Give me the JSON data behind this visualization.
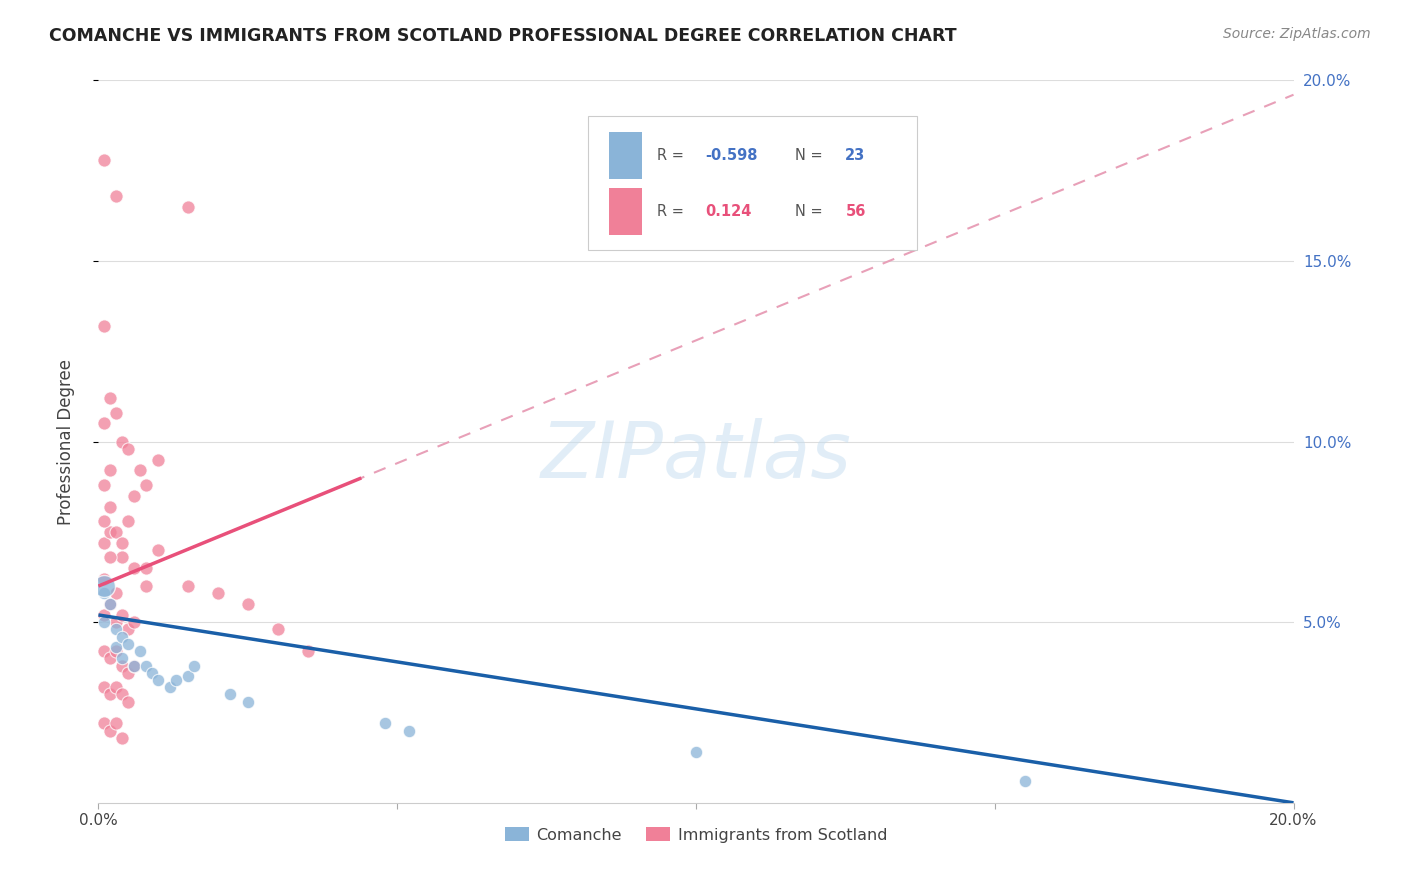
{
  "title": "COMANCHE VS IMMIGRANTS FROM SCOTLAND PROFESSIONAL DEGREE CORRELATION CHART",
  "source": "Source: ZipAtlas.com",
  "ylabel": "Professional Degree",
  "xlim": [
    0.0,
    0.2
  ],
  "ylim": [
    0.0,
    0.2
  ],
  "comanche_color": "#8ab4d8",
  "scotland_color": "#f08098",
  "trendline_comanche_color": "#1a5fa8",
  "trendline_scotland_solid_color": "#e8507a",
  "trendline_scotland_dashed_color": "#e8a0b8",
  "right_axis_color": "#4472c4",
  "watermark": "ZIPatlas",
  "background_color": "#ffffff",
  "grid_color": "#dddddd",
  "comanche_R": "-0.598",
  "comanche_N": "23",
  "scotland_R": "0.124",
  "scotland_N": "56",
  "comanche_points": [
    [
      0.001,
      0.058
    ],
    [
      0.001,
      0.05
    ],
    [
      0.002,
      0.055
    ],
    [
      0.003,
      0.048
    ],
    [
      0.003,
      0.043
    ],
    [
      0.004,
      0.046
    ],
    [
      0.004,
      0.04
    ],
    [
      0.005,
      0.044
    ],
    [
      0.006,
      0.038
    ],
    [
      0.007,
      0.042
    ],
    [
      0.008,
      0.038
    ],
    [
      0.009,
      0.036
    ],
    [
      0.01,
      0.034
    ],
    [
      0.012,
      0.032
    ],
    [
      0.013,
      0.034
    ],
    [
      0.015,
      0.035
    ],
    [
      0.016,
      0.038
    ],
    [
      0.022,
      0.03
    ],
    [
      0.025,
      0.028
    ],
    [
      0.048,
      0.022
    ],
    [
      0.052,
      0.02
    ],
    [
      0.1,
      0.014
    ],
    [
      0.155,
      0.006
    ]
  ],
  "scotland_points": [
    [
      0.001,
      0.178
    ],
    [
      0.003,
      0.168
    ],
    [
      0.015,
      0.165
    ],
    [
      0.001,
      0.132
    ],
    [
      0.001,
      0.105
    ],
    [
      0.002,
      0.112
    ],
    [
      0.003,
      0.108
    ],
    [
      0.004,
      0.1
    ],
    [
      0.005,
      0.098
    ],
    [
      0.007,
      0.092
    ],
    [
      0.008,
      0.088
    ],
    [
      0.01,
      0.095
    ],
    [
      0.001,
      0.072
    ],
    [
      0.002,
      0.075
    ],
    [
      0.004,
      0.068
    ],
    [
      0.006,
      0.065
    ],
    [
      0.008,
      0.06
    ],
    [
      0.001,
      0.052
    ],
    [
      0.002,
      0.055
    ],
    [
      0.003,
      0.05
    ],
    [
      0.004,
      0.052
    ],
    [
      0.005,
      0.048
    ],
    [
      0.006,
      0.05
    ],
    [
      0.001,
      0.042
    ],
    [
      0.002,
      0.04
    ],
    [
      0.003,
      0.042
    ],
    [
      0.004,
      0.038
    ],
    [
      0.005,
      0.036
    ],
    [
      0.006,
      0.038
    ],
    [
      0.001,
      0.032
    ],
    [
      0.002,
      0.03
    ],
    [
      0.003,
      0.032
    ],
    [
      0.004,
      0.03
    ],
    [
      0.005,
      0.028
    ],
    [
      0.001,
      0.022
    ],
    [
      0.002,
      0.02
    ],
    [
      0.003,
      0.022
    ],
    [
      0.004,
      0.018
    ],
    [
      0.001,
      0.062
    ],
    [
      0.002,
      0.068
    ],
    [
      0.003,
      0.058
    ],
    [
      0.001,
      0.078
    ],
    [
      0.002,
      0.082
    ],
    [
      0.003,
      0.075
    ],
    [
      0.004,
      0.072
    ],
    [
      0.005,
      0.078
    ],
    [
      0.015,
      0.06
    ],
    [
      0.02,
      0.058
    ],
    [
      0.03,
      0.048
    ],
    [
      0.035,
      0.042
    ],
    [
      0.001,
      0.088
    ],
    [
      0.002,
      0.092
    ],
    [
      0.006,
      0.085
    ],
    [
      0.008,
      0.065
    ],
    [
      0.01,
      0.07
    ],
    [
      0.025,
      0.055
    ]
  ],
  "comanche_large_points": [
    [
      0.001,
      0.06
    ]
  ],
  "scotland_trendline_solid_xlim": [
    0.0,
    0.044
  ],
  "comanche_trendline_intercept": 0.052,
  "comanche_trendline_slope": -0.26,
  "scotland_trendline_intercept": 0.06,
  "scotland_trendline_slope": 0.68
}
